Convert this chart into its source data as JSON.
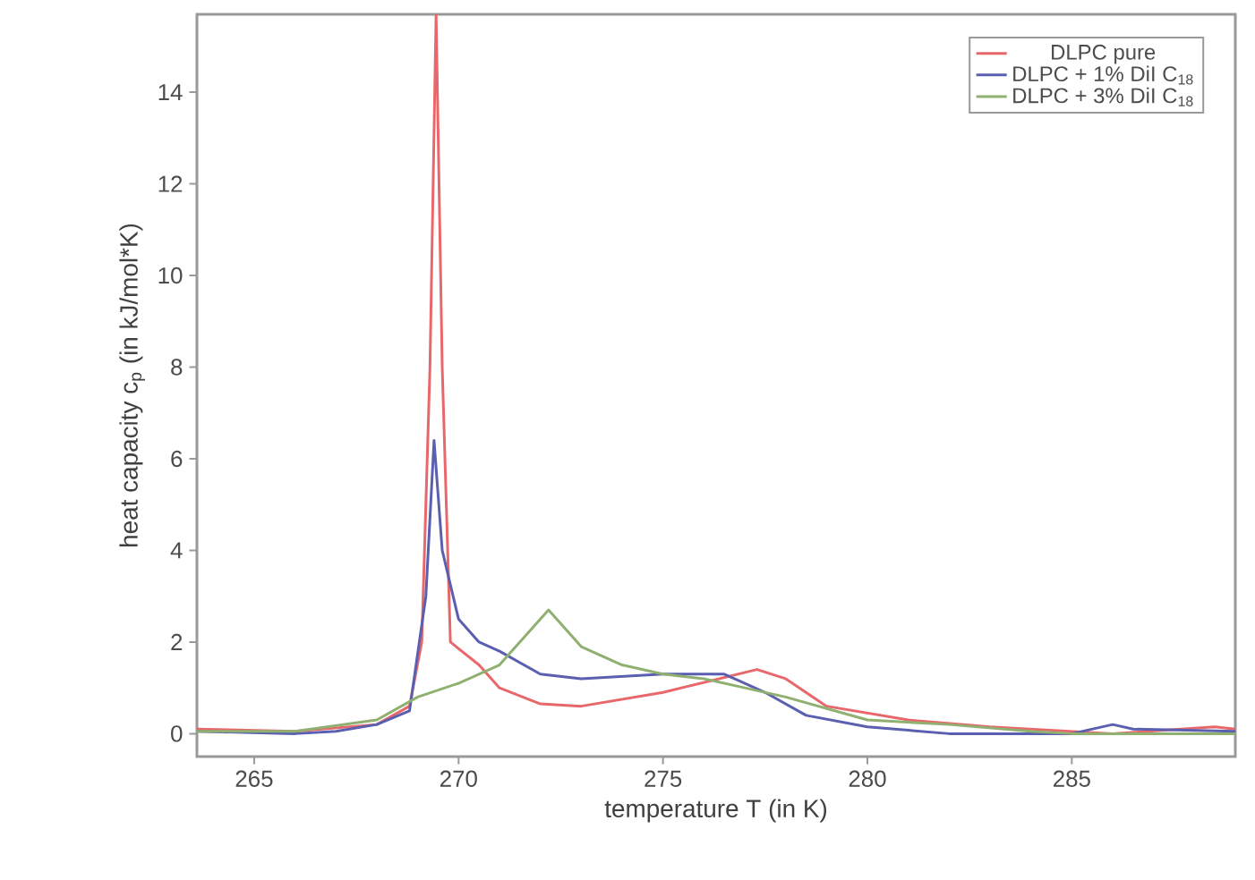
{
  "chart_data": {
    "type": "line",
    "xlabel": "temperature T (in K)",
    "ylabel": "heat capacity c$_{p}$ (in kJ/mol*K)",
    "xlim": [
      263.6,
      289.0
    ],
    "ylim": [
      -0.5,
      15.7
    ],
    "xticks": [
      265,
      270,
      275,
      280,
      285
    ],
    "yticks": [
      0,
      2,
      4,
      6,
      8,
      10,
      12,
      14
    ],
    "legend": "top right",
    "grid": false,
    "line_style": "solid",
    "marker": "none",
    "series": [
      {
        "name": "DLPC pure",
        "color": "#e8676b",
        "x": [
          263.6,
          266,
          268,
          268.8,
          269.1,
          269.3,
          269.45,
          269.6,
          269.8,
          270.5,
          271,
          272,
          273,
          275,
          277.3,
          278,
          279,
          281,
          283,
          285,
          286,
          288.5,
          289
        ],
        "values": [
          0.1,
          0.05,
          0.2,
          0.6,
          2,
          8,
          15.7,
          8,
          2,
          1.5,
          1,
          0.65,
          0.6,
          0.9,
          1.4,
          1.2,
          0.6,
          0.3,
          0.15,
          0.05,
          0,
          0.15,
          0.1
        ]
      },
      {
        "name": "DLPC + 1% DiI C$_{18}$",
        "color": "#5a5fb0",
        "x": [
          263.6,
          266,
          267,
          268,
          268.8,
          269.2,
          269.4,
          269.6,
          270,
          270.5,
          271,
          272,
          273,
          275,
          276.5,
          277.5,
          278.5,
          280,
          282,
          284,
          285,
          286,
          286.5,
          289
        ],
        "values": [
          0.05,
          0,
          0.05,
          0.2,
          0.5,
          3,
          6.4,
          4,
          2.5,
          2,
          1.8,
          1.3,
          1.2,
          1.3,
          1.3,
          0.9,
          0.4,
          0.15,
          0,
          0,
          0,
          0.2,
          0.1,
          0.05
        ]
      },
      {
        "name": "DLPC + 3% DiI C$_{18}$",
        "color": "#8fb070",
        "x": [
          263.6,
          266,
          268,
          269,
          270,
          271,
          272.2,
          273,
          274,
          275,
          276,
          277,
          278,
          280,
          282,
          284,
          285,
          289
        ],
        "values": [
          0.05,
          0.05,
          0.3,
          0.8,
          1.1,
          1.5,
          2.7,
          1.9,
          1.5,
          1.3,
          1.2,
          1.0,
          0.8,
          0.3,
          0.2,
          0.05,
          0,
          0
        ]
      }
    ]
  }
}
